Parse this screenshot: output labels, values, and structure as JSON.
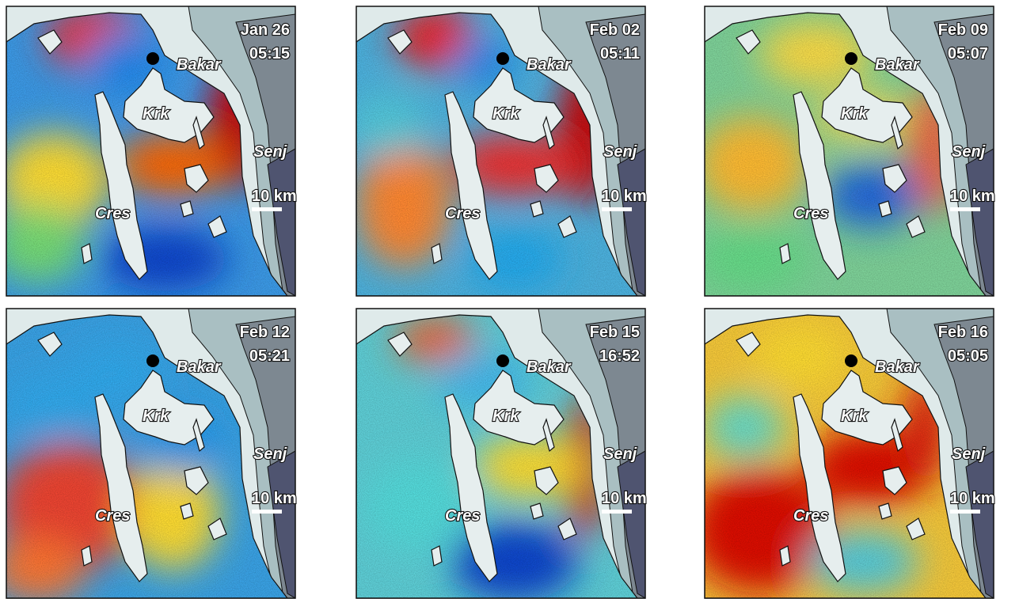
{
  "panels": [
    {
      "date": "Jan 26",
      "time": "05:15"
    },
    {
      "date": "Feb 02",
      "time": "05:11"
    },
    {
      "date": "Feb 09",
      "time": "05:07"
    },
    {
      "date": "Feb 12",
      "time": "05:21"
    },
    {
      "date": "Feb 15",
      "time": "16:52"
    },
    {
      "date": "Feb 16",
      "time": "05:05"
    }
  ],
  "labels": {
    "bakar": "Bakar",
    "krk": "Krk",
    "senj": "Senj",
    "cres": "Cres",
    "scale": "10 km"
  }
}
